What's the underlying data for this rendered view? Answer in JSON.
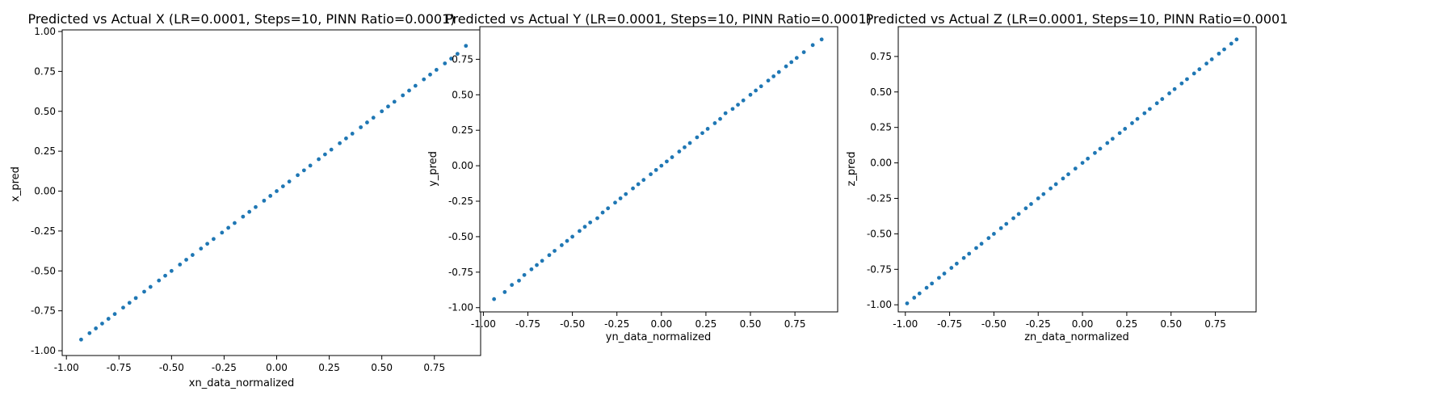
{
  "chart_data": [
    {
      "type": "scatter",
      "title": "Predicted vs Actual X (LR=0.0001, Steps=10, PINN Ratio=0.0001)",
      "xlabel": "xn_data_normalized",
      "ylabel": "x_pred",
      "xlim": [
        -1.02,
        0.97
      ],
      "ylim": [
        -1.03,
        1.01
      ],
      "xticks": [
        "-1.00",
        "-0.75",
        "-0.50",
        "-0.25",
        "0.00",
        "0.25",
        "0.50",
        "0.75"
      ],
      "yticks": [
        "-1.00",
        "-0.75",
        "-0.50",
        "-0.25",
        "0.00",
        "0.25",
        "0.50",
        "0.75",
        "1.00"
      ],
      "color": "#1f77b4",
      "series": [
        {
          "x": [
            -0.93,
            -0.89,
            -0.86,
            -0.83,
            -0.8,
            -0.77,
            -0.73,
            -0.7,
            -0.67,
            -0.63,
            -0.6,
            -0.56,
            -0.53,
            -0.5,
            -0.46,
            -0.43,
            -0.4,
            -0.36,
            -0.33,
            -0.3,
            -0.26,
            -0.23,
            -0.2,
            -0.16,
            -0.13,
            -0.1,
            -0.06,
            -0.03,
            0.0,
            0.03,
            0.06,
            0.1,
            0.13,
            0.16,
            0.2,
            0.23,
            0.26,
            0.3,
            0.33,
            0.36,
            0.4,
            0.43,
            0.46,
            0.5,
            0.53,
            0.56,
            0.6,
            0.63,
            0.66,
            0.7,
            0.73,
            0.76,
            0.8,
            0.83,
            0.86,
            0.9
          ],
          "y": [
            -0.93,
            -0.89,
            -0.86,
            -0.83,
            -0.8,
            -0.77,
            -0.73,
            -0.7,
            -0.67,
            -0.63,
            -0.6,
            -0.56,
            -0.53,
            -0.5,
            -0.46,
            -0.43,
            -0.4,
            -0.36,
            -0.33,
            -0.3,
            -0.26,
            -0.23,
            -0.2,
            -0.16,
            -0.13,
            -0.1,
            -0.06,
            -0.03,
            0.0,
            0.03,
            0.06,
            0.1,
            0.13,
            0.16,
            0.2,
            0.23,
            0.26,
            0.3,
            0.33,
            0.36,
            0.4,
            0.43,
            0.46,
            0.5,
            0.53,
            0.56,
            0.6,
            0.63,
            0.66,
            0.7,
            0.73,
            0.76,
            0.8,
            0.83,
            0.86,
            0.91
          ]
        }
      ]
    },
    {
      "type": "scatter",
      "title": "Predicted vs Actual Y (LR=0.0001, Steps=10, PINN Ratio=0.0001)",
      "xlabel": "yn_data_normalized",
      "ylabel": "y_pred",
      "xlim": [
        -1.02,
        0.99
      ],
      "ylim": [
        -1.03,
        0.98
      ],
      "xticks": [
        "-1.00",
        "-0.75",
        "-0.50",
        "-0.25",
        "0.00",
        "0.25",
        "0.50",
        "0.75"
      ],
      "yticks": [
        "-1.00",
        "-0.75",
        "-0.50",
        "-0.25",
        "0.00",
        "0.25",
        "0.50",
        "0.75"
      ],
      "color": "#1f77b4",
      "series": [
        {
          "x": [
            -0.94,
            -0.88,
            -0.84,
            -0.8,
            -0.77,
            -0.73,
            -0.7,
            -0.67,
            -0.63,
            -0.6,
            -0.56,
            -0.53,
            -0.5,
            -0.46,
            -0.43,
            -0.4,
            -0.36,
            -0.33,
            -0.3,
            -0.26,
            -0.23,
            -0.2,
            -0.16,
            -0.13,
            -0.1,
            -0.06,
            -0.03,
            0.0,
            0.03,
            0.06,
            0.1,
            0.13,
            0.16,
            0.2,
            0.23,
            0.26,
            0.3,
            0.33,
            0.36,
            0.4,
            0.43,
            0.46,
            0.5,
            0.53,
            0.56,
            0.6,
            0.63,
            0.66,
            0.7,
            0.73,
            0.76,
            0.8,
            0.85,
            0.9
          ],
          "y": [
            -0.94,
            -0.89,
            -0.84,
            -0.81,
            -0.77,
            -0.73,
            -0.7,
            -0.67,
            -0.63,
            -0.6,
            -0.56,
            -0.53,
            -0.5,
            -0.46,
            -0.43,
            -0.4,
            -0.37,
            -0.33,
            -0.3,
            -0.26,
            -0.23,
            -0.2,
            -0.16,
            -0.13,
            -0.1,
            -0.06,
            -0.03,
            0.0,
            0.03,
            0.06,
            0.1,
            0.13,
            0.16,
            0.2,
            0.23,
            0.26,
            0.3,
            0.33,
            0.37,
            0.4,
            0.43,
            0.46,
            0.5,
            0.53,
            0.56,
            0.6,
            0.63,
            0.66,
            0.7,
            0.73,
            0.76,
            0.8,
            0.85,
            0.89
          ]
        }
      ]
    },
    {
      "type": "scatter",
      "title": "Predicted vs Actual Z (LR=0.0001, Steps=10, PINN Ratio=0.0001",
      "xlabel": "zn_data_normalized",
      "ylabel": "z_pred",
      "xlim": [
        -1.04,
        0.98
      ],
      "ylim": [
        -1.05,
        0.96
      ],
      "xticks": [
        "-1.00",
        "-0.75",
        "-0.50",
        "-0.25",
        "0.00",
        "0.25",
        "0.50",
        "0.75"
      ],
      "yticks": [
        "-1.00",
        "-0.75",
        "-0.50",
        "-0.25",
        "0.00",
        "0.25",
        "0.50",
        "0.75"
      ],
      "color": "#1f77b4",
      "series": [
        {
          "x": [
            -0.99,
            -0.95,
            -0.92,
            -0.88,
            -0.85,
            -0.81,
            -0.78,
            -0.74,
            -0.71,
            -0.67,
            -0.64,
            -0.6,
            -0.57,
            -0.53,
            -0.5,
            -0.46,
            -0.43,
            -0.39,
            -0.36,
            -0.32,
            -0.29,
            -0.25,
            -0.22,
            -0.18,
            -0.15,
            -0.11,
            -0.08,
            -0.04,
            0.0,
            0.03,
            0.07,
            0.1,
            0.14,
            0.17,
            0.21,
            0.24,
            0.28,
            0.31,
            0.35,
            0.38,
            0.42,
            0.45,
            0.49,
            0.52,
            0.56,
            0.59,
            0.63,
            0.66,
            0.7,
            0.73,
            0.77,
            0.8,
            0.84,
            0.87
          ],
          "y": [
            -0.99,
            -0.95,
            -0.92,
            -0.88,
            -0.85,
            -0.81,
            -0.78,
            -0.74,
            -0.71,
            -0.67,
            -0.64,
            -0.6,
            -0.57,
            -0.53,
            -0.5,
            -0.46,
            -0.43,
            -0.39,
            -0.36,
            -0.32,
            -0.29,
            -0.25,
            -0.22,
            -0.18,
            -0.15,
            -0.11,
            -0.08,
            -0.04,
            0.0,
            0.03,
            0.07,
            0.1,
            0.14,
            0.17,
            0.21,
            0.24,
            0.28,
            0.31,
            0.35,
            0.38,
            0.42,
            0.45,
            0.49,
            0.52,
            0.56,
            0.59,
            0.63,
            0.66,
            0.7,
            0.73,
            0.77,
            0.8,
            0.84,
            0.87
          ]
        }
      ]
    }
  ]
}
